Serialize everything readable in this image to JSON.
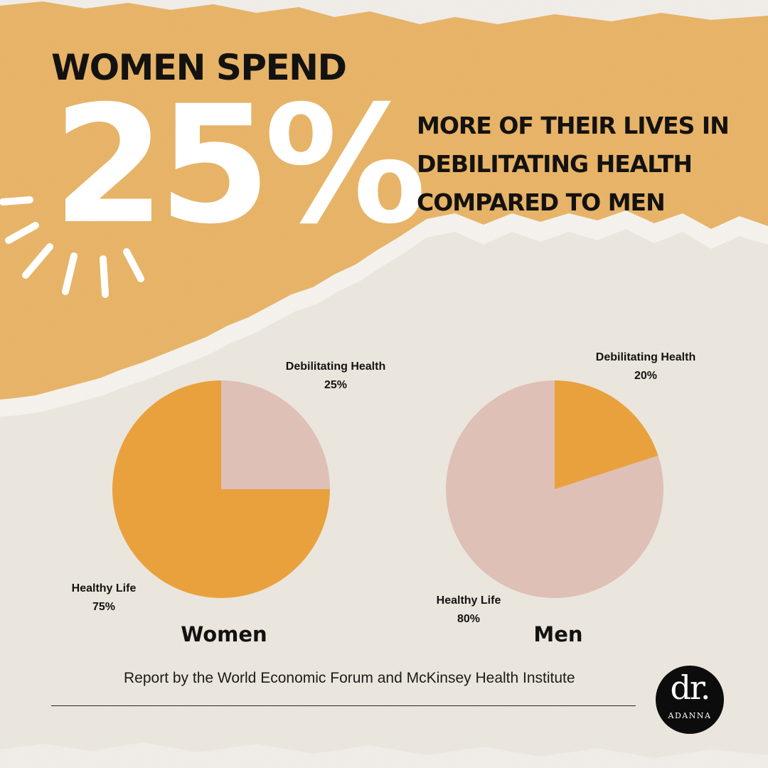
{
  "headline": "WOMEN SPEND",
  "big_stat": "25%",
  "subhead_lines": [
    "MORE OF THEIR LIVES IN",
    "DEBILITATING HEALTH",
    "COMPARED TO MEN"
  ],
  "source_caption": "Report by the World Economic Forum and McKinsey Health Institute",
  "logo": {
    "mark": "dr.",
    "name": "ADANNA"
  },
  "colors": {
    "orange_band": "#e8b365",
    "orange_slice": "#e9a13e",
    "pink_slice": "#dec0b6",
    "paper": "#ece7de",
    "text": "#141210"
  },
  "chart_data": [
    {
      "type": "pie",
      "title": "Women",
      "slices": [
        {
          "label": "Debilitating Health",
          "value": 25,
          "value_label": "25%",
          "color": "#dec0b6"
        },
        {
          "label": "Healthy Life",
          "value": 75,
          "value_label": "75%",
          "color": "#e9a13e"
        }
      ]
    },
    {
      "type": "pie",
      "title": "Men",
      "slices": [
        {
          "label": "Debilitating Health",
          "value": 20,
          "value_label": "20%",
          "color": "#e9a13e"
        },
        {
          "label": "Healthy Life",
          "value": 80,
          "value_label": "80%",
          "color": "#dec0b6"
        }
      ]
    }
  ]
}
